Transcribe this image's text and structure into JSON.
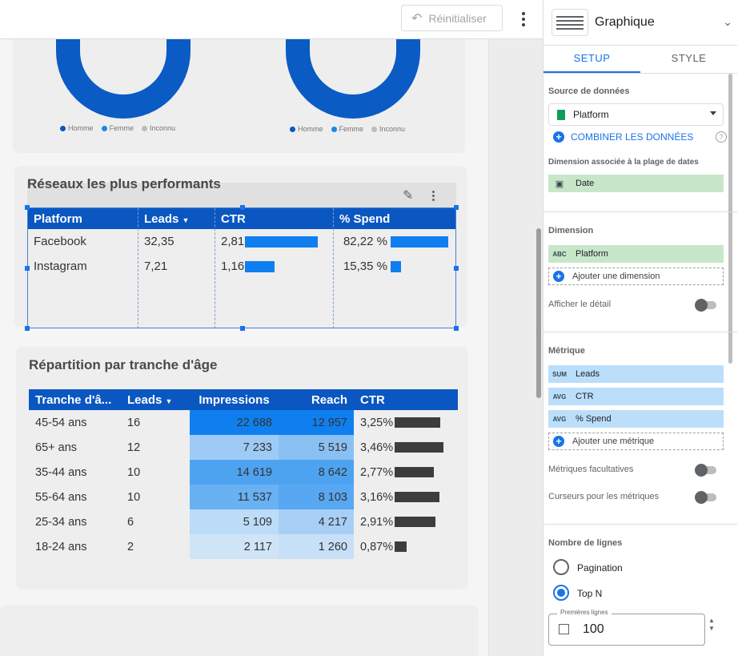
{
  "toolbar": {
    "reset_label": "Réinitialiser"
  },
  "donut_left": {
    "legend": [
      "Homme",
      "Femme",
      "Inconnu"
    ]
  },
  "donut_right": {
    "legend": [
      "Homme",
      "Femme",
      "Inconnu"
    ]
  },
  "colors": {
    "accent": "#1a73e8",
    "table_header": "#0a57c2",
    "donut": "#0a5bc4"
  },
  "network_card": {
    "title": "Réseaux les plus performants",
    "columns": [
      "Platform",
      "Leads",
      "CTR",
      "% Spend"
    ],
    "rows": [
      {
        "platform": "Facebook",
        "leads": "32,35",
        "ctr": "2,81",
        "spend": "82,22 %",
        "ctr_bar": 0.95,
        "spend_bar": 0.8222
      },
      {
        "platform": "Instagram",
        "leads": "7,21",
        "ctr": "1,16",
        "spend": "15,35 %",
        "ctr_bar": 0.39,
        "spend_bar": 0.1535
      }
    ]
  },
  "age_card": {
    "title": "Répartition par tranche d'âge",
    "columns": [
      "Tranche d'â...",
      "Leads",
      "Impressions",
      "Reach",
      "CTR"
    ],
    "rows": [
      {
        "age": "45-54 ans",
        "leads": "16",
        "impressions": "22 688",
        "reach": "12 957",
        "ctr": "3,25%",
        "ctr_val": 3.25
      },
      {
        "age": "65+ ans",
        "leads": "12",
        "impressions": "7 233",
        "reach": "5 519",
        "ctr": "3,46%",
        "ctr_val": 3.46
      },
      {
        "age": "35-44 ans",
        "leads": "10",
        "impressions": "14 619",
        "reach": "8 642",
        "ctr": "2,77%",
        "ctr_val": 2.77
      },
      {
        "age": "55-64 ans",
        "leads": "10",
        "impressions": "11 537",
        "reach": "8 103",
        "ctr": "3,16%",
        "ctr_val": 3.16
      },
      {
        "age": "25-34 ans",
        "leads": "6",
        "impressions": "5 109",
        "reach": "4 217",
        "ctr": "2,91%",
        "ctr_val": 2.91
      },
      {
        "age": "18-24 ans",
        "leads": "2",
        "impressions": "2 117",
        "reach": "1 260",
        "ctr": "0,87%",
        "ctr_val": 0.87
      }
    ]
  },
  "panel": {
    "title": "Graphique",
    "tabs": [
      "SETUP",
      "STYLE"
    ],
    "source_label": "Source de données",
    "source_value": "Platform",
    "combine_label": "COMBINER LES DONNÉES",
    "date_dim_label": "Dimension associée à la plage de dates",
    "date_dim_value": "Date",
    "dimension_label": "Dimension",
    "dimension_value": "Platform",
    "dimension_tag": "ABC",
    "add_dimension": "Ajouter une dimension",
    "show_detail": "Afficher le détail",
    "metric_label": "Métrique",
    "metrics": [
      {
        "tag": "SUM",
        "name": "Leads"
      },
      {
        "tag": "AVG",
        "name": "CTR"
      },
      {
        "tag": "AVG",
        "name": "% Spend"
      }
    ],
    "add_metric": "Ajouter une métrique",
    "optional_metrics": "Métriques facultatives",
    "metric_sliders": "Curseurs pour les métriques",
    "rows_label": "Nombre de lignes",
    "pagination": "Pagination",
    "topn": "Top N",
    "first_rows_label": "Premières lignes",
    "first_rows_value": "100"
  }
}
